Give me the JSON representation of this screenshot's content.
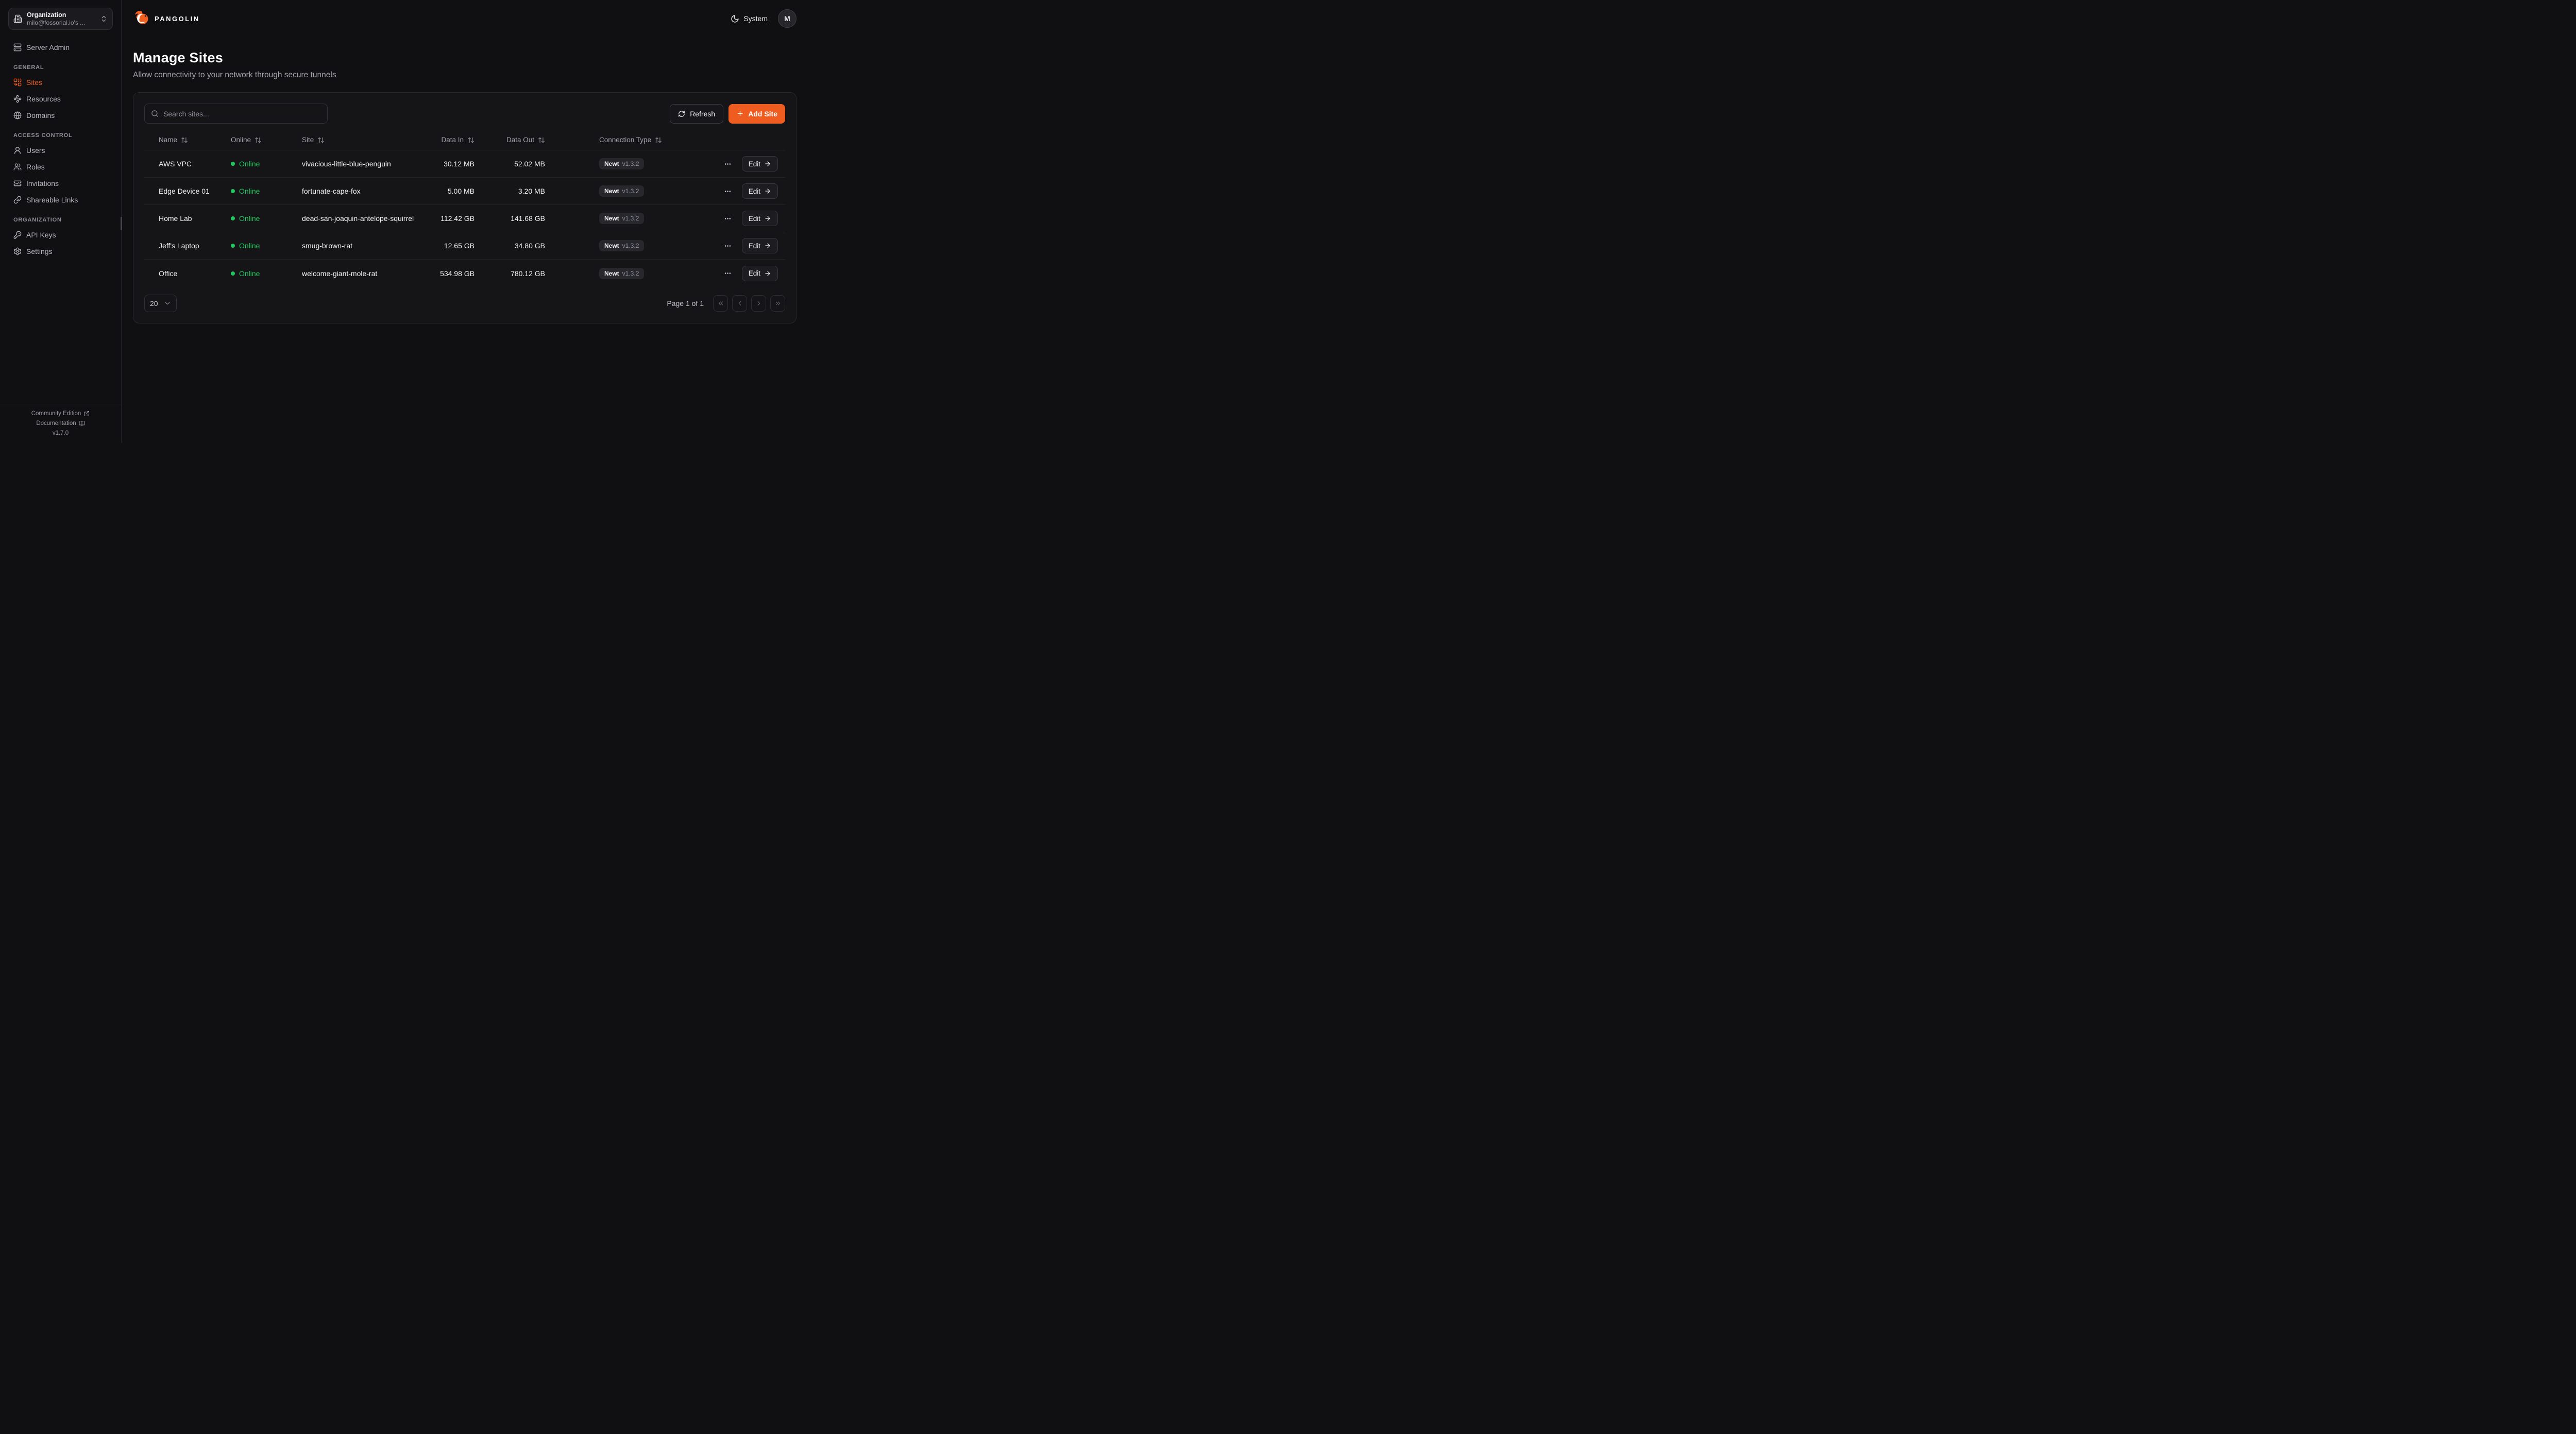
{
  "brand": {
    "name": "PANGOLIN"
  },
  "theme": {
    "accent": "#ee5c1f",
    "online_green": "#22c55e"
  },
  "header": {
    "theme_label": "System",
    "avatar_initial": "M"
  },
  "sidebar": {
    "org": {
      "label": "Organization",
      "value": "milo@fossorial.io's ..."
    },
    "server_admin": {
      "label": "Server Admin",
      "icon": "server"
    },
    "sections": [
      {
        "heading": "GENERAL",
        "items": [
          {
            "label": "Sites",
            "icon": "combine",
            "active": true
          },
          {
            "label": "Resources",
            "icon": "waypoints",
            "active": false
          },
          {
            "label": "Domains",
            "icon": "globe",
            "active": false
          }
        ]
      },
      {
        "heading": "ACCESS CONTROL",
        "items": [
          {
            "label": "Users",
            "icon": "user",
            "active": false
          },
          {
            "label": "Roles",
            "icon": "users",
            "active": false
          },
          {
            "label": "Invitations",
            "icon": "ticket-check",
            "active": false
          },
          {
            "label": "Shareable Links",
            "icon": "link",
            "active": false
          }
        ]
      },
      {
        "heading": "ORGANIZATION",
        "items": [
          {
            "label": "API Keys",
            "icon": "key-round",
            "active": false
          },
          {
            "label": "Settings",
            "icon": "settings",
            "active": false
          }
        ]
      }
    ],
    "footer": {
      "community_label": "Community Edition",
      "docs_label": "Documentation",
      "version": "v1.7.0"
    }
  },
  "page": {
    "title": "Manage Sites",
    "subtitle": "Allow connectivity to your network through secure tunnels"
  },
  "toolbar": {
    "search_placeholder": "Search sites...",
    "refresh_label": "Refresh",
    "add_label": "Add Site"
  },
  "table": {
    "columns": [
      "Name",
      "Online",
      "Site",
      "Data In",
      "Data Out",
      "Connection Type"
    ],
    "edit_label": "Edit",
    "rows": [
      {
        "name": "AWS VPC",
        "status": "Online",
        "site": "vivacious-little-blue-penguin",
        "data_in": "30.12 MB",
        "data_out": "52.02 MB",
        "type": "Newt",
        "version": "v1.3.2"
      },
      {
        "name": "Edge Device 01",
        "status": "Online",
        "site": "fortunate-cape-fox",
        "data_in": "5.00 MB",
        "data_out": "3.20 MB",
        "type": "Newt",
        "version": "v1.3.2"
      },
      {
        "name": "Home Lab",
        "status": "Online",
        "site": "dead-san-joaquin-antelope-squirrel",
        "data_in": "112.42 GB",
        "data_out": "141.68 GB",
        "type": "Newt",
        "version": "v1.3.2"
      },
      {
        "name": "Jeff's Laptop",
        "status": "Online",
        "site": "smug-brown-rat",
        "data_in": "12.65 GB",
        "data_out": "34.80 GB",
        "type": "Newt",
        "version": "v1.3.2"
      },
      {
        "name": "Office",
        "status": "Online",
        "site": "welcome-giant-mole-rat",
        "data_in": "534.98 GB",
        "data_out": "780.12 GB",
        "type": "Newt",
        "version": "v1.3.2"
      }
    ]
  },
  "pagination": {
    "page_size": "20",
    "status": "Page 1 of 1"
  }
}
